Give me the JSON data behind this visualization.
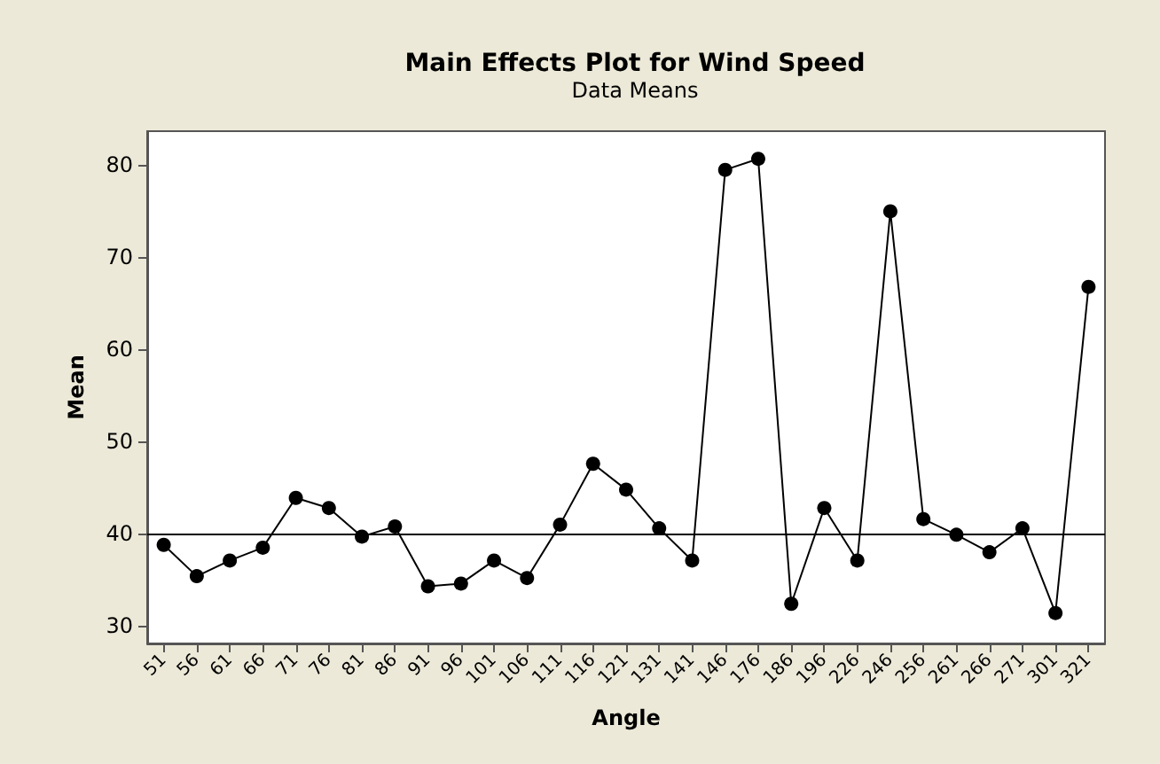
{
  "chart_data": {
    "type": "line",
    "title": "Main Effects Plot for Wind Speed",
    "subtitle": "Data Means",
    "xlabel": "Angle",
    "ylabel": "Mean",
    "categories": [
      "51",
      "56",
      "61",
      "66",
      "71",
      "76",
      "81",
      "86",
      "91",
      "96",
      "101",
      "106",
      "111",
      "116",
      "121",
      "131",
      "141",
      "146",
      "176",
      "186",
      "196",
      "226",
      "246",
      "256",
      "261",
      "266",
      "271",
      "301",
      "321"
    ],
    "series": [
      {
        "color": "#000000",
        "values": [
          38.8,
          35.4,
          37.1,
          38.5,
          43.9,
          42.8,
          39.7,
          40.8,
          34.3,
          34.6,
          37.1,
          35.2,
          41.0,
          47.6,
          44.8,
          40.6,
          37.1,
          79.5,
          80.7,
          32.4,
          42.8,
          37.1,
          75.0,
          41.6,
          39.9,
          38.0,
          40.6,
          31.4,
          66.8
        ]
      }
    ],
    "ylim": [
      28.1,
      83.7
    ],
    "yticks": [
      30,
      40,
      50,
      60,
      70,
      80
    ],
    "marker": "circle",
    "grid": false,
    "ref_lines": [
      {
        "axis": "y",
        "value": 40,
        "color": "#000000"
      }
    ]
  }
}
